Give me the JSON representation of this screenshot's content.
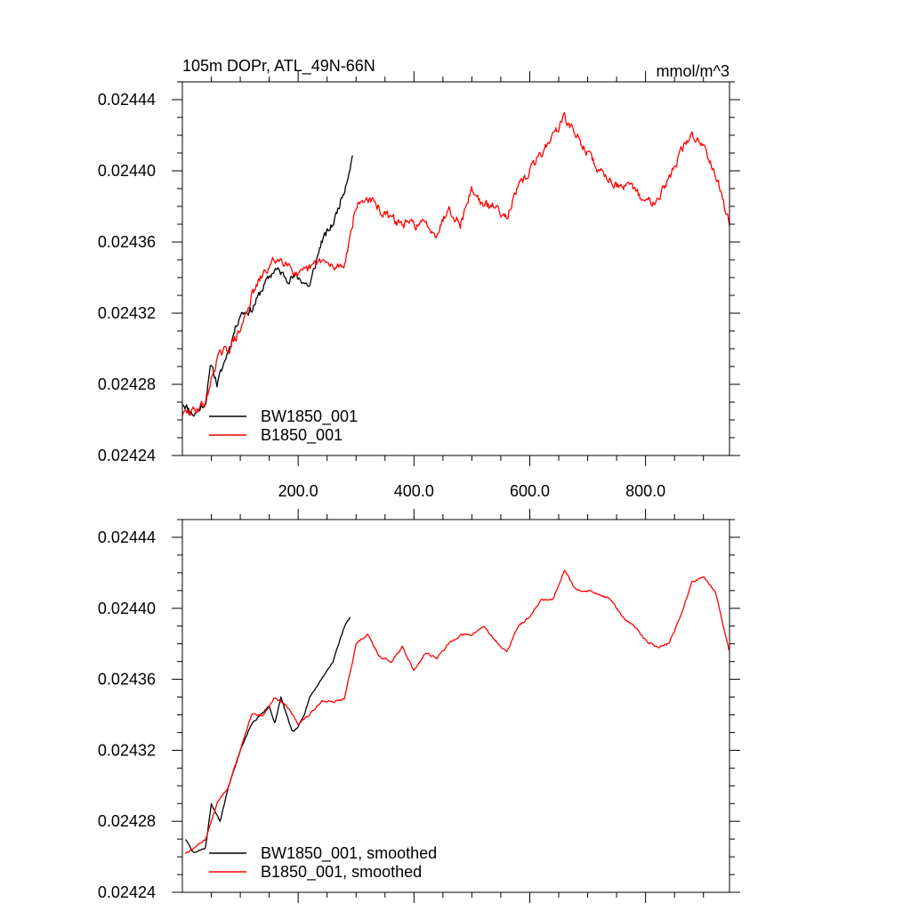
{
  "chart_data": [
    {
      "type": "line",
      "title": "105m DOPr, ATL_49N-66N",
      "units": "mmol/m^3",
      "xlabel": "",
      "ylabel": "",
      "xlim": [
        0,
        945
      ],
      "ylim": [
        0.02424,
        0.02445
      ],
      "xticks": [
        200,
        400,
        600,
        800
      ],
      "xtick_labels": [
        "200.0",
        "400.0",
        "600.0",
        "800.0"
      ],
      "yticks": [
        0.02424,
        0.02428,
        0.02432,
        0.02436,
        0.0244,
        0.02444
      ],
      "ytick_labels": [
        "0.02424",
        "0.02428",
        "0.02432",
        "0.02436",
        "0.02440",
        "0.02444"
      ],
      "legend_position": "bottom-left",
      "grid": false,
      "series": [
        {
          "name": "BW1850_001",
          "color": "#000000",
          "noise": 1.9e-06,
          "seed": 11,
          "x": [
            0,
            20,
            40,
            50,
            60,
            80,
            100,
            120,
            140,
            160,
            180,
            200,
            220,
            240,
            260,
            280,
            295
          ],
          "y": [
            0.02427,
            0.024263,
            0.02427,
            0.024292,
            0.02428,
            0.0243,
            0.02432,
            0.024322,
            0.024335,
            0.024345,
            0.02434,
            0.02434,
            0.024335,
            0.02436,
            0.02437,
            0.02439,
            0.02441
          ]
        },
        {
          "name": "B1850_001",
          "color": "#ff0000",
          "noise": 2.2e-06,
          "seed": 29,
          "x": [
            0,
            20,
            40,
            60,
            80,
            100,
            120,
            140,
            160,
            180,
            200,
            220,
            240,
            260,
            280,
            300,
            320,
            350,
            380,
            400,
            420,
            440,
            460,
            480,
            500,
            520,
            540,
            560,
            580,
            600,
            620,
            640,
            660,
            680,
            700,
            720,
            740,
            760,
            780,
            800,
            820,
            840,
            860,
            880,
            900,
            920,
            945
          ],
          "y": [
            0.024263,
            0.024265,
            0.02427,
            0.024295,
            0.0243,
            0.02431,
            0.02433,
            0.024342,
            0.02435,
            0.02435,
            0.02434,
            0.024345,
            0.02435,
            0.024345,
            0.024348,
            0.02438,
            0.024385,
            0.024375,
            0.02437,
            0.02437,
            0.02437,
            0.024365,
            0.02438,
            0.02437,
            0.02439,
            0.02438,
            0.02438,
            0.024375,
            0.02439,
            0.0244,
            0.02441,
            0.02442,
            0.02443,
            0.02442,
            0.02441,
            0.0244,
            0.024395,
            0.02439,
            0.02439,
            0.024382,
            0.024385,
            0.024395,
            0.02441,
            0.02442,
            0.024415,
            0.0244,
            0.02437
          ]
        }
      ]
    },
    {
      "type": "line",
      "title": "",
      "xlabel": "",
      "ylabel": "",
      "xlim": [
        0,
        945
      ],
      "ylim": [
        0.02424,
        0.02445
      ],
      "xticks": [
        200,
        400,
        600,
        800
      ],
      "xtick_labels": [],
      "yticks": [
        0.02424,
        0.02428,
        0.02432,
        0.02436,
        0.0244,
        0.02444
      ],
      "ytick_labels": [
        "0.02424",
        "0.02428",
        "0.02432",
        "0.02436",
        "0.02440",
        "0.02444"
      ],
      "legend_position": "bottom-left",
      "grid": false,
      "series": [
        {
          "name": "BW1850_001, smoothed",
          "color": "#000000",
          "noise": 4e-07,
          "seed": 7,
          "x": [
            5,
            20,
            40,
            50,
            65,
            80,
            100,
            120,
            135,
            150,
            160,
            170,
            180,
            190,
            200,
            210,
            220,
            240,
            260,
            280,
            290
          ],
          "y": [
            0.02427,
            0.024262,
            0.024265,
            0.02429,
            0.02428,
            0.0243,
            0.02432,
            0.024335,
            0.02434,
            0.024345,
            0.024335,
            0.02435,
            0.02434,
            0.02433,
            0.024333,
            0.02434,
            0.02435,
            0.02436,
            0.02437,
            0.02439,
            0.024395
          ]
        },
        {
          "name": "B1850_001, smoothed",
          "color": "#ff0000",
          "noise": 5e-07,
          "seed": 13,
          "x": [
            5,
            20,
            40,
            60,
            80,
            100,
            120,
            140,
            160,
            180,
            200,
            220,
            240,
            260,
            280,
            300,
            320,
            340,
            360,
            380,
            400,
            420,
            440,
            460,
            480,
            500,
            520,
            540,
            560,
            580,
            600,
            620,
            640,
            660,
            680,
            700,
            720,
            740,
            760,
            780,
            800,
            820,
            840,
            860,
            880,
            900,
            920,
            945
          ],
          "y": [
            0.024262,
            0.024265,
            0.02427,
            0.02429,
            0.0243,
            0.02432,
            0.02434,
            0.02434,
            0.02435,
            0.024345,
            0.024335,
            0.02434,
            0.024348,
            0.024347,
            0.024349,
            0.02438,
            0.024385,
            0.024373,
            0.02437,
            0.024378,
            0.024365,
            0.024375,
            0.024372,
            0.02438,
            0.024385,
            0.024385,
            0.02439,
            0.024382,
            0.024375,
            0.02439,
            0.024395,
            0.024405,
            0.024405,
            0.024422,
            0.02441,
            0.02441,
            0.024408,
            0.024405,
            0.024395,
            0.02439,
            0.024382,
            0.024378,
            0.02438,
            0.024395,
            0.024415,
            0.024418,
            0.02441,
            0.024375
          ]
        }
      ]
    }
  ]
}
